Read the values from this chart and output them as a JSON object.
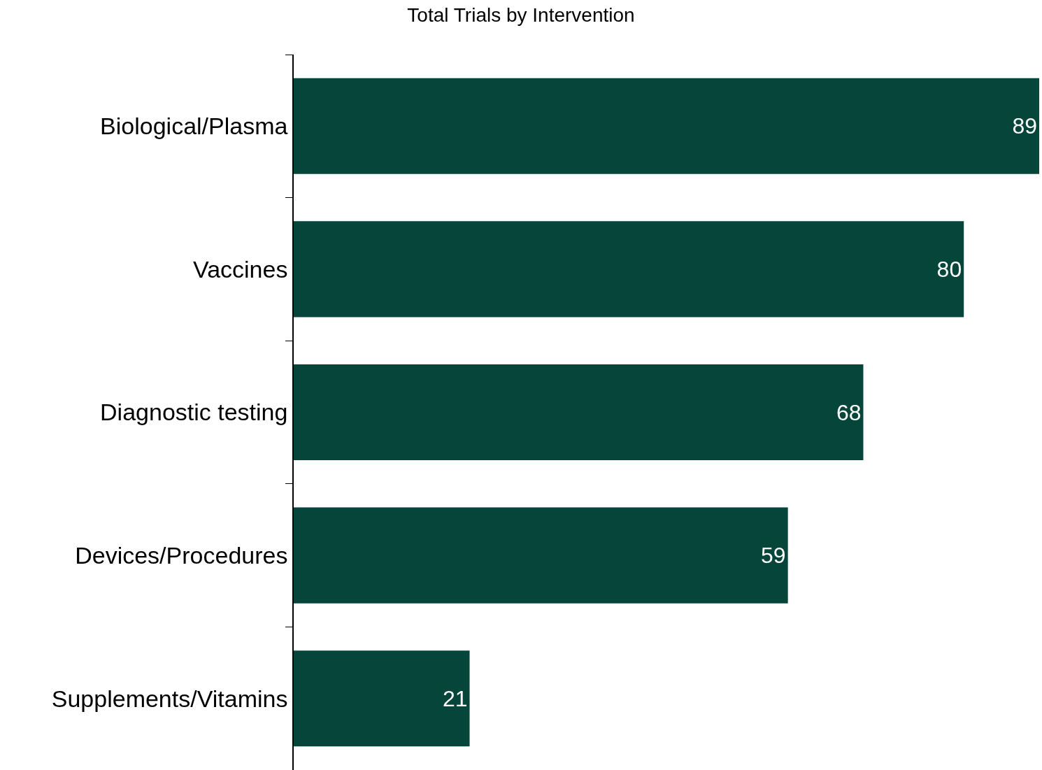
{
  "chart_data": {
    "type": "bar",
    "orientation": "horizontal",
    "title": "Total Trials by Intervention",
    "categories": [
      "Biological/Plasma",
      "Vaccines",
      "Diagnostic testing",
      "Devices/Procedures",
      "Supplements/Vitamins"
    ],
    "values": [
      89,
      80,
      68,
      59,
      21
    ],
    "color": "#06463a",
    "data_labels": true,
    "legend": false,
    "tick_labels": "y"
  }
}
